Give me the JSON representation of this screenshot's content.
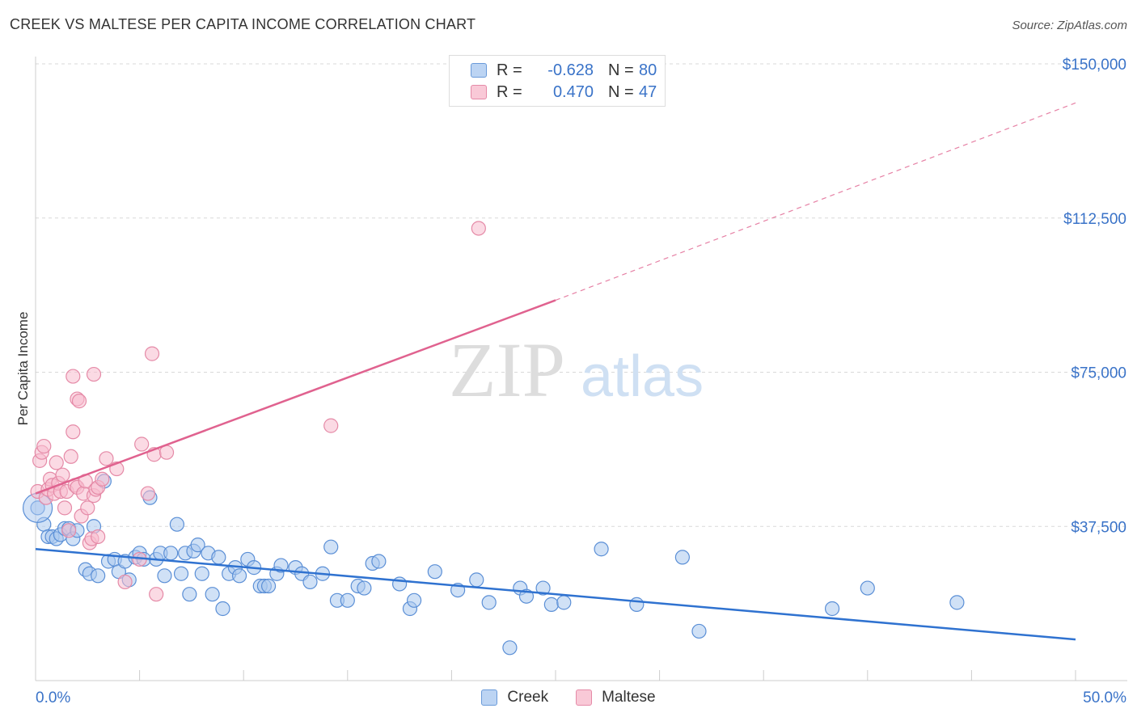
{
  "header": {
    "title": "CREEK VS MALTESE PER CAPITA INCOME CORRELATION CHART",
    "source": "Source: ZipAtlas.com"
  },
  "watermark": {
    "zip": "ZIP",
    "atlas": "atlas"
  },
  "legend": {
    "rows": [
      {
        "r_label": "R =",
        "r_value": "-0.628",
        "n_label": "N =",
        "n_value": "80"
      },
      {
        "r_label": "R =",
        "r_value": "0.470",
        "n_label": "N =",
        "n_value": "47"
      }
    ]
  },
  "colors": {
    "creek_fill": "#a9c8ef",
    "creek_stroke": "#5b8fd6",
    "creek_line": "#2f72d0",
    "maltese_fill": "#f7bccd",
    "maltese_stroke": "#e58aa7",
    "maltese_line": "#e0628f",
    "axis_label": "#3a73c8",
    "grid": "#d9d9d9"
  },
  "chart_data": {
    "type": "scatter",
    "title": "CREEK VS MALTESE PER CAPITA INCOME CORRELATION CHART",
    "xlabel": "",
    "ylabel": "Per Capita Income",
    "xlim": [
      0,
      50
    ],
    "ylim": [
      0,
      150000
    ],
    "x_tick_labels": [
      "0.0%",
      "50.0%"
    ],
    "y_ticks": [
      37500,
      75000,
      112500,
      150000
    ],
    "y_tick_labels": [
      "$37,500",
      "$75,000",
      "$112,500",
      "$150,000"
    ],
    "grid": true,
    "legend_position": "top-center",
    "series": [
      {
        "name": "Creek",
        "r": -0.628,
        "n": 80,
        "trend": {
          "x": [
            0,
            50
          ],
          "y": [
            32000,
            10000
          ],
          "dashed_extension": false
        },
        "points": [
          [
            0.1,
            42000
          ],
          [
            0.4,
            38000
          ],
          [
            0.6,
            35000
          ],
          [
            0.8,
            35000
          ],
          [
            1.0,
            34500
          ],
          [
            1.2,
            35500
          ],
          [
            1.4,
            37000
          ],
          [
            1.6,
            37000
          ],
          [
            1.8,
            34500
          ],
          [
            2.0,
            36500
          ],
          [
            2.4,
            27000
          ],
          [
            2.6,
            26000
          ],
          [
            2.8,
            37500
          ],
          [
            3.0,
            25500
          ],
          [
            3.3,
            48500
          ],
          [
            3.5,
            29000
          ],
          [
            3.8,
            29500
          ],
          [
            4.0,
            26500
          ],
          [
            4.3,
            29000
          ],
          [
            4.5,
            24500
          ],
          [
            4.8,
            30000
          ],
          [
            5.0,
            31000
          ],
          [
            5.2,
            29500
          ],
          [
            5.5,
            44500
          ],
          [
            5.8,
            29500
          ],
          [
            6.0,
            31000
          ],
          [
            6.2,
            25500
          ],
          [
            6.5,
            31000
          ],
          [
            6.8,
            38000
          ],
          [
            7.0,
            26000
          ],
          [
            7.2,
            31000
          ],
          [
            7.4,
            21000
          ],
          [
            7.6,
            31500
          ],
          [
            7.8,
            33000
          ],
          [
            8.0,
            26000
          ],
          [
            8.3,
            31000
          ],
          [
            8.5,
            21000
          ],
          [
            8.8,
            30000
          ],
          [
            9.0,
            17500
          ],
          [
            9.3,
            26000
          ],
          [
            9.6,
            27500
          ],
          [
            9.8,
            25500
          ],
          [
            10.2,
            29500
          ],
          [
            10.5,
            27500
          ],
          [
            10.8,
            23000
          ],
          [
            11.0,
            23000
          ],
          [
            11.2,
            23000
          ],
          [
            11.6,
            26000
          ],
          [
            11.8,
            28000
          ],
          [
            12.5,
            27500
          ],
          [
            12.8,
            26000
          ],
          [
            13.2,
            24000
          ],
          [
            13.8,
            26000
          ],
          [
            14.2,
            32500
          ],
          [
            14.5,
            19500
          ],
          [
            15.0,
            19500
          ],
          [
            15.5,
            23000
          ],
          [
            15.8,
            22500
          ],
          [
            16.2,
            28500
          ],
          [
            16.5,
            29000
          ],
          [
            17.5,
            23500
          ],
          [
            18.0,
            17500
          ],
          [
            18.2,
            19500
          ],
          [
            19.2,
            26500
          ],
          [
            20.3,
            22000
          ],
          [
            21.2,
            24500
          ],
          [
            21.8,
            19000
          ],
          [
            22.8,
            8000
          ],
          [
            23.3,
            22500
          ],
          [
            23.6,
            20500
          ],
          [
            24.4,
            22500
          ],
          [
            24.8,
            18500
          ],
          [
            25.4,
            19000
          ],
          [
            27.2,
            32000
          ],
          [
            28.9,
            18500
          ],
          [
            31.1,
            30000
          ],
          [
            31.9,
            12000
          ],
          [
            38.3,
            17500
          ],
          [
            40.0,
            22500
          ],
          [
            44.3,
            19000
          ]
        ]
      },
      {
        "name": "Maltese",
        "r": 0.47,
        "n": 47,
        "trend": {
          "x": [
            0,
            25
          ],
          "y": [
            45500,
            92500
          ],
          "dashed_extension_to": [
            50,
            140500
          ]
        },
        "points": [
          [
            0.1,
            46000
          ],
          [
            0.2,
            53500
          ],
          [
            0.3,
            55500
          ],
          [
            0.4,
            57000
          ],
          [
            0.5,
            44500
          ],
          [
            0.6,
            46500
          ],
          [
            0.7,
            49000
          ],
          [
            0.8,
            47500
          ],
          [
            0.9,
            45500
          ],
          [
            1.0,
            53000
          ],
          [
            1.1,
            48000
          ],
          [
            1.2,
            46000
          ],
          [
            1.3,
            50000
          ],
          [
            1.4,
            42000
          ],
          [
            1.5,
            46000
          ],
          [
            1.6,
            36500
          ],
          [
            1.7,
            54500
          ],
          [
            1.8,
            60500
          ],
          [
            1.9,
            47500
          ],
          [
            2.0,
            47000
          ],
          [
            1.8,
            74000
          ],
          [
            2.0,
            68500
          ],
          [
            2.1,
            68000
          ],
          [
            2.2,
            40000
          ],
          [
            2.3,
            45500
          ],
          [
            2.4,
            48500
          ],
          [
            2.5,
            42000
          ],
          [
            2.6,
            33500
          ],
          [
            2.7,
            34500
          ],
          [
            2.8,
            45000
          ],
          [
            2.9,
            46500
          ],
          [
            3.0,
            47000
          ],
          [
            3.0,
            35000
          ],
          [
            2.8,
            74500
          ],
          [
            3.4,
            54000
          ],
          [
            3.9,
            51500
          ],
          [
            4.3,
            24000
          ],
          [
            5.0,
            29500
          ],
          [
            5.1,
            57500
          ],
          [
            5.4,
            45500
          ],
          [
            5.6,
            79500
          ],
          [
            5.7,
            55000
          ],
          [
            5.8,
            21000
          ],
          [
            6.3,
            55500
          ],
          [
            14.2,
            62000
          ],
          [
            21.3,
            110000
          ],
          [
            3.2,
            49000
          ]
        ]
      }
    ]
  }
}
